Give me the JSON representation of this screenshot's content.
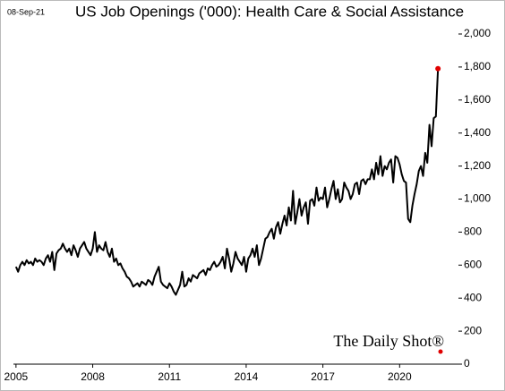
{
  "chart_data": {
    "type": "line",
    "title": "US Job Openings ('000): Health Care & Social Assistance",
    "date": "08-Sep-21",
    "source": "The Daily Shot®",
    "color": "#000000",
    "last_point_color": "#e00000",
    "x": [
      2005,
      2005.083,
      2005.167,
      2005.25,
      2005.333,
      2005.417,
      2005.5,
      2005.583,
      2005.667,
      2005.75,
      2005.833,
      2005.917,
      2006,
      2006.083,
      2006.167,
      2006.25,
      2006.333,
      2006.417,
      2006.5,
      2006.583,
      2006.667,
      2006.75,
      2006.833,
      2006.917,
      2007,
      2007.083,
      2007.167,
      2007.25,
      2007.333,
      2007.417,
      2007.5,
      2007.583,
      2007.667,
      2007.75,
      2007.833,
      2007.917,
      2008,
      2008.083,
      2008.167,
      2008.25,
      2008.333,
      2008.417,
      2008.5,
      2008.583,
      2008.667,
      2008.75,
      2008.833,
      2008.917,
      2009,
      2009.083,
      2009.167,
      2009.25,
      2009.333,
      2009.417,
      2009.5,
      2009.583,
      2009.667,
      2009.75,
      2009.833,
      2009.917,
      2010,
      2010.083,
      2010.167,
      2010.25,
      2010.333,
      2010.417,
      2010.5,
      2010.583,
      2010.667,
      2010.75,
      2010.833,
      2010.917,
      2011,
      2011.083,
      2011.167,
      2011.25,
      2011.333,
      2011.417,
      2011.5,
      2011.583,
      2011.667,
      2011.75,
      2011.833,
      2011.917,
      2012,
      2012.083,
      2012.167,
      2012.25,
      2012.333,
      2012.417,
      2012.5,
      2012.583,
      2012.667,
      2012.75,
      2012.833,
      2012.917,
      2013,
      2013.083,
      2013.167,
      2013.25,
      2013.333,
      2013.417,
      2013.5,
      2013.583,
      2013.667,
      2013.75,
      2013.833,
      2013.917,
      2014,
      2014.083,
      2014.167,
      2014.25,
      2014.333,
      2014.417,
      2014.5,
      2014.583,
      2014.667,
      2014.75,
      2014.833,
      2014.917,
      2015,
      2015.083,
      2015.167,
      2015.25,
      2015.333,
      2015.417,
      2015.5,
      2015.583,
      2015.667,
      2015.75,
      2015.833,
      2015.917,
      2016,
      2016.083,
      2016.167,
      2016.25,
      2016.333,
      2016.417,
      2016.5,
      2016.583,
      2016.667,
      2016.75,
      2016.833,
      2016.917,
      2017,
      2017.083,
      2017.167,
      2017.25,
      2017.333,
      2017.417,
      2017.5,
      2017.583,
      2017.667,
      2017.75,
      2017.833,
      2017.917,
      2018,
      2018.083,
      2018.167,
      2018.25,
      2018.333,
      2018.417,
      2018.5,
      2018.583,
      2018.667,
      2018.75,
      2018.833,
      2018.917,
      2019,
      2019.083,
      2019.167,
      2019.25,
      2019.333,
      2019.417,
      2019.5,
      2019.583,
      2019.667,
      2019.75,
      2019.833,
      2019.917,
      2020,
      2020.083,
      2020.167,
      2020.25,
      2020.333,
      2020.417,
      2020.5,
      2020.583,
      2020.667,
      2020.75,
      2020.833,
      2020.917,
      2021,
      2021.083,
      2021.167,
      2021.25,
      2021.333,
      2021.417,
      2021.5
    ],
    "values": [
      590,
      560,
      600,
      620,
      600,
      630,
      610,
      620,
      600,
      640,
      620,
      630,
      620,
      600,
      640,
      660,
      620,
      680,
      570,
      670,
      690,
      700,
      730,
      700,
      680,
      700,
      660,
      720,
      690,
      650,
      700,
      720,
      740,
      700,
      680,
      660,
      700,
      800,
      680,
      720,
      700,
      690,
      740,
      680,
      650,
      700,
      620,
      640,
      600,
      610,
      580,
      560,
      530,
      520,
      500,
      470,
      480,
      490,
      470,
      500,
      490,
      480,
      510,
      500,
      480,
      530,
      560,
      590,
      500,
      480,
      470,
      460,
      490,
      470,
      440,
      420,
      450,
      480,
      560,
      470,
      480,
      520,
      500,
      540,
      530,
      520,
      550,
      560,
      570,
      540,
      580,
      570,
      600,
      620,
      590,
      600,
      620,
      650,
      580,
      700,
      640,
      560,
      610,
      680,
      640,
      620,
      600,
      650,
      560,
      640,
      660,
      700,
      650,
      720,
      600,
      640,
      700,
      760,
      770,
      800,
      820,
      760,
      830,
      860,
      790,
      850,
      900,
      840,
      950,
      870,
      1050,
      850,
      920,
      1000,
      900,
      950,
      980,
      850,
      990,
      1000,
      960,
      1070,
      990,
      1010,
      1000,
      1070,
      950,
      1000,
      1060,
      1110,
      1000,
      1060,
      980,
      1000,
      1100,
      1070,
      1050,
      1000,
      1030,
      1090,
      1100,
      1030,
      1110,
      1120,
      1090,
      1120,
      1120,
      1180,
      1120,
      1220,
      1150,
      1260,
      1140,
      1200,
      1180,
      1220,
      1240,
      1100,
      1260,
      1250,
      1210,
      1150,
      1110,
      1100,
      880,
      860,
      960,
      1030,
      1090,
      1170,
      1200,
      1140,
      1280,
      1220,
      1450,
      1320,
      1490,
      1500,
      1790
    ],
    "xlim": [
      2004.9,
      2022.3
    ],
    "xticks": [
      2005,
      2008,
      2011,
      2014,
      2017,
      2020
    ],
    "ylim": [
      0,
      2000
    ],
    "yticks": [
      0,
      200,
      400,
      600,
      800,
      {
        "value": 1000,
        "label": "1,000"
      },
      {
        "value": 1200,
        "label": "1,200"
      },
      {
        "value": 1400,
        "label": "1,400"
      },
      {
        "value": 1600,
        "label": "1,600"
      },
      {
        "value": 1800,
        "label": "1,800"
      },
      {
        "value": 2000,
        "label": "2,000"
      }
    ]
  }
}
